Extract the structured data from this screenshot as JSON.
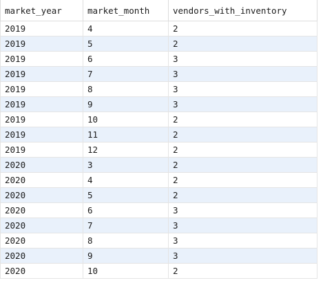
{
  "result_grid": {
    "columns": [
      "market_year",
      "market_month",
      "vendors_with_inventory"
    ],
    "rows": [
      [
        "2019",
        "4",
        "2"
      ],
      [
        "2019",
        "5",
        "2"
      ],
      [
        "2019",
        "6",
        "3"
      ],
      [
        "2019",
        "7",
        "3"
      ],
      [
        "2019",
        "8",
        "3"
      ],
      [
        "2019",
        "9",
        "3"
      ],
      [
        "2019",
        "10",
        "2"
      ],
      [
        "2019",
        "11",
        "2"
      ],
      [
        "2019",
        "12",
        "2"
      ],
      [
        "2020",
        "3",
        "2"
      ],
      [
        "2020",
        "4",
        "2"
      ],
      [
        "2020",
        "5",
        "2"
      ],
      [
        "2020",
        "6",
        "3"
      ],
      [
        "2020",
        "7",
        "3"
      ],
      [
        "2020",
        "8",
        "3"
      ],
      [
        "2020",
        "9",
        "3"
      ],
      [
        "2020",
        "10",
        "2"
      ]
    ]
  },
  "colors": {
    "row_alt": "#e9f1fb",
    "grid_line": "#e4e4e4",
    "text": "#1b1b1b"
  }
}
